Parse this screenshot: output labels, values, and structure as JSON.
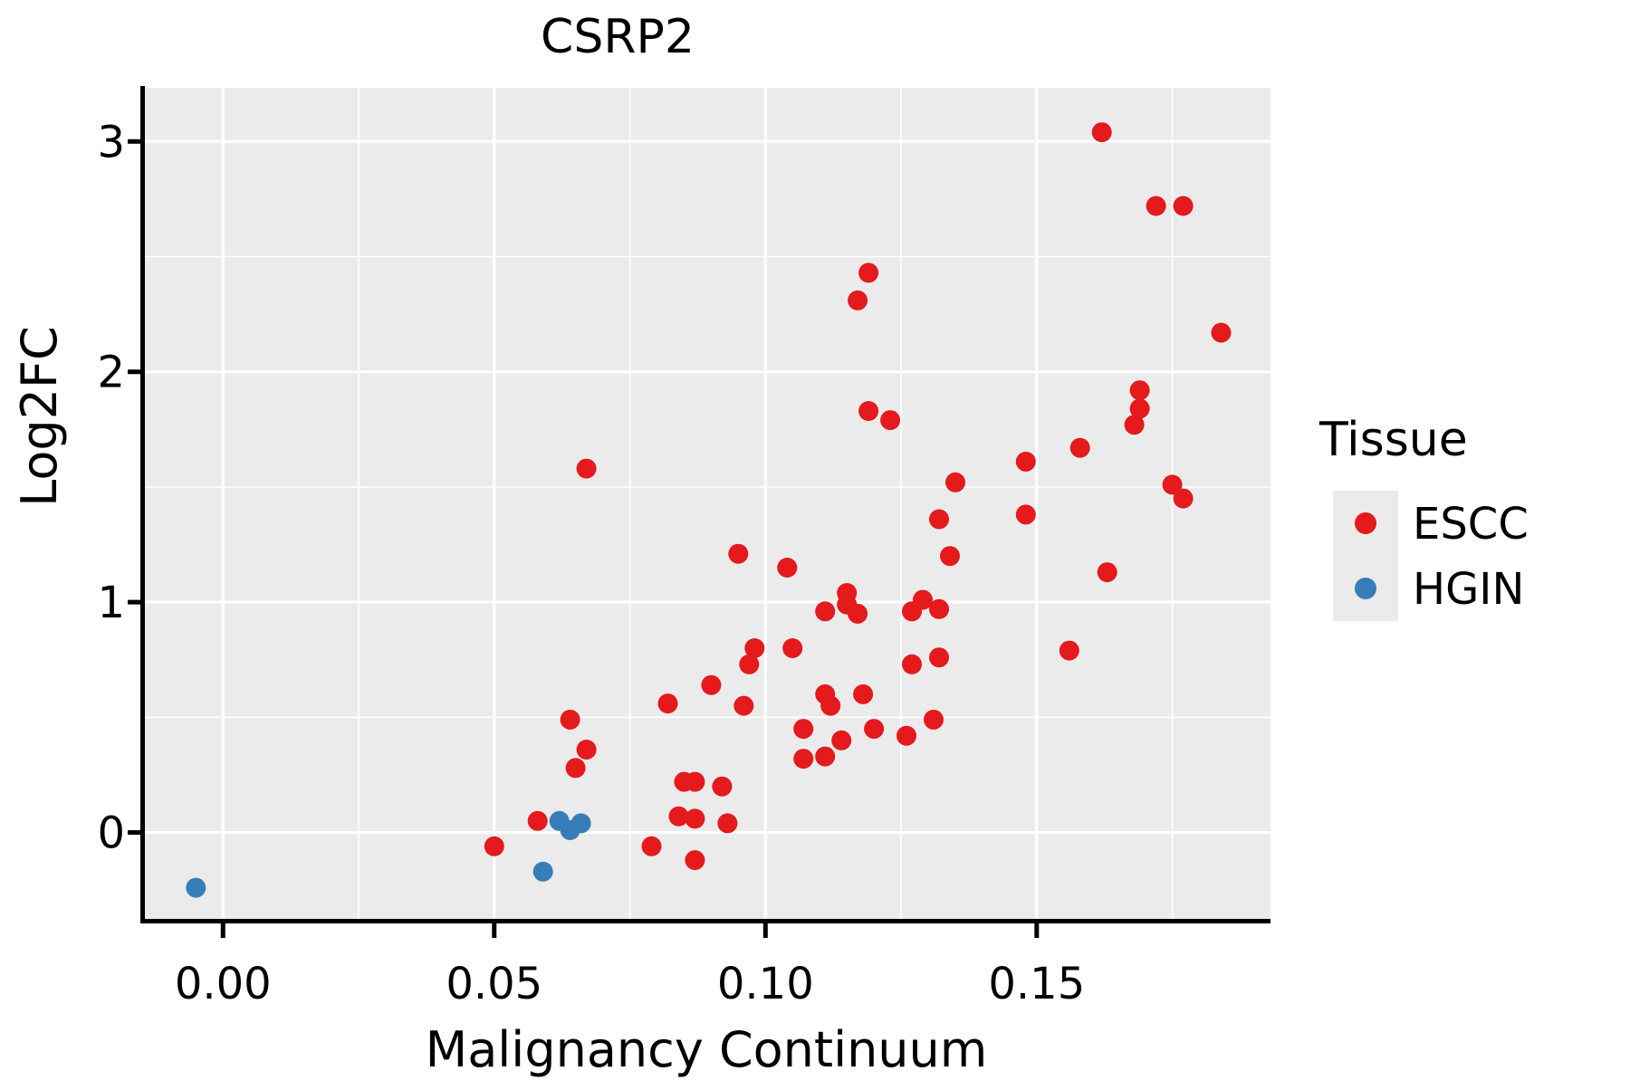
{
  "title": "CSRP2",
  "x_axis": {
    "label": "Malignancy Continuum",
    "tick_labels": [
      "0.00",
      "0.05",
      "0.10",
      "0.15"
    ],
    "tick_values": [
      0.0,
      0.05,
      0.1,
      0.15
    ],
    "minor_values": [
      0.025,
      0.075,
      0.125,
      0.175
    ],
    "range": [
      -0.0144,
      0.1931
    ]
  },
  "y_axis": {
    "label": "Log2FC",
    "tick_labels": [
      "0",
      "1",
      "2",
      "3"
    ],
    "tick_values": [
      0,
      1,
      2,
      3
    ],
    "minor_values": [
      0.5,
      1.5,
      2.5
    ],
    "range": [
      -0.383,
      3.233
    ]
  },
  "legend": {
    "title": "Tissue",
    "items": [
      {
        "label": "ESCC",
        "color": "#E41A1C"
      },
      {
        "label": "HGIN",
        "color": "#377EB8"
      }
    ]
  },
  "colors": {
    "panel_background": "#EBEBEB",
    "grid": "#FFFFFF",
    "axis": "#000000",
    "escc": "#E41A1C",
    "hgin": "#377EB8",
    "legend_key": "#EBEBEB"
  },
  "chart_data": {
    "type": "scatter",
    "title": "CSRP2",
    "xlabel": "Malignancy Continuum",
    "ylabel": "Log2FC",
    "xlim": [
      -0.0144,
      0.1931
    ],
    "ylim": [
      -0.383,
      3.233
    ],
    "grid": true,
    "legend_position": "right",
    "legend_title": "Tissue",
    "point_radius_px": 11,
    "series": [
      {
        "name": "ESCC",
        "color": "#E41A1C",
        "points": [
          [
            0.05,
            -0.06
          ],
          [
            0.058,
            0.05
          ],
          [
            0.079,
            -0.06
          ],
          [
            0.087,
            -0.12
          ],
          [
            0.084,
            0.07
          ],
          [
            0.087,
            0.06
          ],
          [
            0.093,
            0.04
          ],
          [
            0.085,
            0.22
          ],
          [
            0.087,
            0.22
          ],
          [
            0.092,
            0.2
          ],
          [
            0.064,
            0.49
          ],
          [
            0.067,
            0.36
          ],
          [
            0.065,
            0.28
          ],
          [
            0.082,
            0.56
          ],
          [
            0.09,
            0.64
          ],
          [
            0.096,
            0.55
          ],
          [
            0.097,
            0.73
          ],
          [
            0.098,
            0.8
          ],
          [
            0.105,
            0.8
          ],
          [
            0.107,
            0.45
          ],
          [
            0.107,
            0.32
          ],
          [
            0.111,
            0.33
          ],
          [
            0.111,
            0.6
          ],
          [
            0.112,
            0.55
          ],
          [
            0.114,
            0.4
          ],
          [
            0.118,
            0.6
          ],
          [
            0.12,
            0.45
          ],
          [
            0.126,
            0.42
          ],
          [
            0.131,
            0.49
          ],
          [
            0.127,
            0.73
          ],
          [
            0.132,
            0.76
          ],
          [
            0.156,
            0.79
          ],
          [
            0.111,
            0.96
          ],
          [
            0.115,
            0.99
          ],
          [
            0.117,
            0.95
          ],
          [
            0.115,
            1.04
          ],
          [
            0.127,
            0.96
          ],
          [
            0.129,
            1.01
          ],
          [
            0.132,
            0.97
          ],
          [
            0.067,
            1.58
          ],
          [
            0.095,
            1.21
          ],
          [
            0.104,
            1.15
          ],
          [
            0.119,
            1.83
          ],
          [
            0.123,
            1.79
          ],
          [
            0.132,
            1.36
          ],
          [
            0.134,
            1.2
          ],
          [
            0.135,
            1.52
          ],
          [
            0.148,
            1.61
          ],
          [
            0.148,
            1.38
          ],
          [
            0.158,
            1.67
          ],
          [
            0.163,
            1.13
          ],
          [
            0.169,
            1.92
          ],
          [
            0.169,
            1.84
          ],
          [
            0.168,
            1.77
          ],
          [
            0.175,
            1.51
          ],
          [
            0.177,
            1.45
          ],
          [
            0.172,
            2.72
          ],
          [
            0.177,
            2.72
          ],
          [
            0.184,
            2.17
          ],
          [
            0.117,
            2.31
          ],
          [
            0.119,
            2.43
          ],
          [
            0.162,
            3.04
          ]
        ]
      },
      {
        "name": "HGIN",
        "color": "#377EB8",
        "points": [
          [
            -0.005,
            -0.24
          ],
          [
            0.059,
            -0.17
          ],
          [
            0.062,
            0.05
          ],
          [
            0.064,
            0.01
          ],
          [
            0.066,
            0.04
          ]
        ]
      }
    ]
  }
}
